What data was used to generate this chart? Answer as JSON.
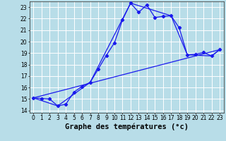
{
  "xlabel": "Graphe des températures (°c)",
  "xlim": [
    -0.5,
    23.5
  ],
  "ylim": [
    13.8,
    23.5
  ],
  "yticks": [
    14,
    15,
    16,
    17,
    18,
    19,
    20,
    21,
    22,
    23
  ],
  "xticks": [
    0,
    1,
    2,
    3,
    4,
    5,
    6,
    7,
    8,
    9,
    10,
    11,
    12,
    13,
    14,
    15,
    16,
    17,
    18,
    19,
    20,
    21,
    22,
    23
  ],
  "background_color": "#b8dde8",
  "grid_color": "#ffffff",
  "line_color": "#1a1aee",
  "line1_x": [
    0,
    1,
    2,
    3,
    4,
    5,
    6,
    7,
    8,
    9,
    10,
    11,
    12,
    13,
    14,
    15,
    16,
    17,
    18,
    19,
    20,
    21,
    22,
    23
  ],
  "line1_y": [
    15.1,
    15.05,
    15.0,
    14.4,
    14.55,
    15.6,
    16.1,
    16.45,
    17.6,
    18.8,
    19.9,
    21.9,
    23.35,
    22.55,
    23.2,
    22.1,
    22.2,
    22.25,
    21.2,
    18.85,
    18.9,
    19.05,
    18.75,
    19.3
  ],
  "line2_x": [
    0,
    3,
    7,
    12,
    17,
    19,
    22,
    23
  ],
  "line2_y": [
    15.1,
    14.4,
    16.45,
    23.35,
    22.25,
    18.85,
    18.75,
    19.3
  ],
  "line3_x": [
    0,
    23
  ],
  "line3_y": [
    15.1,
    19.3
  ],
  "tick_fontsize": 5.5,
  "xlabel_fontsize": 7.5
}
